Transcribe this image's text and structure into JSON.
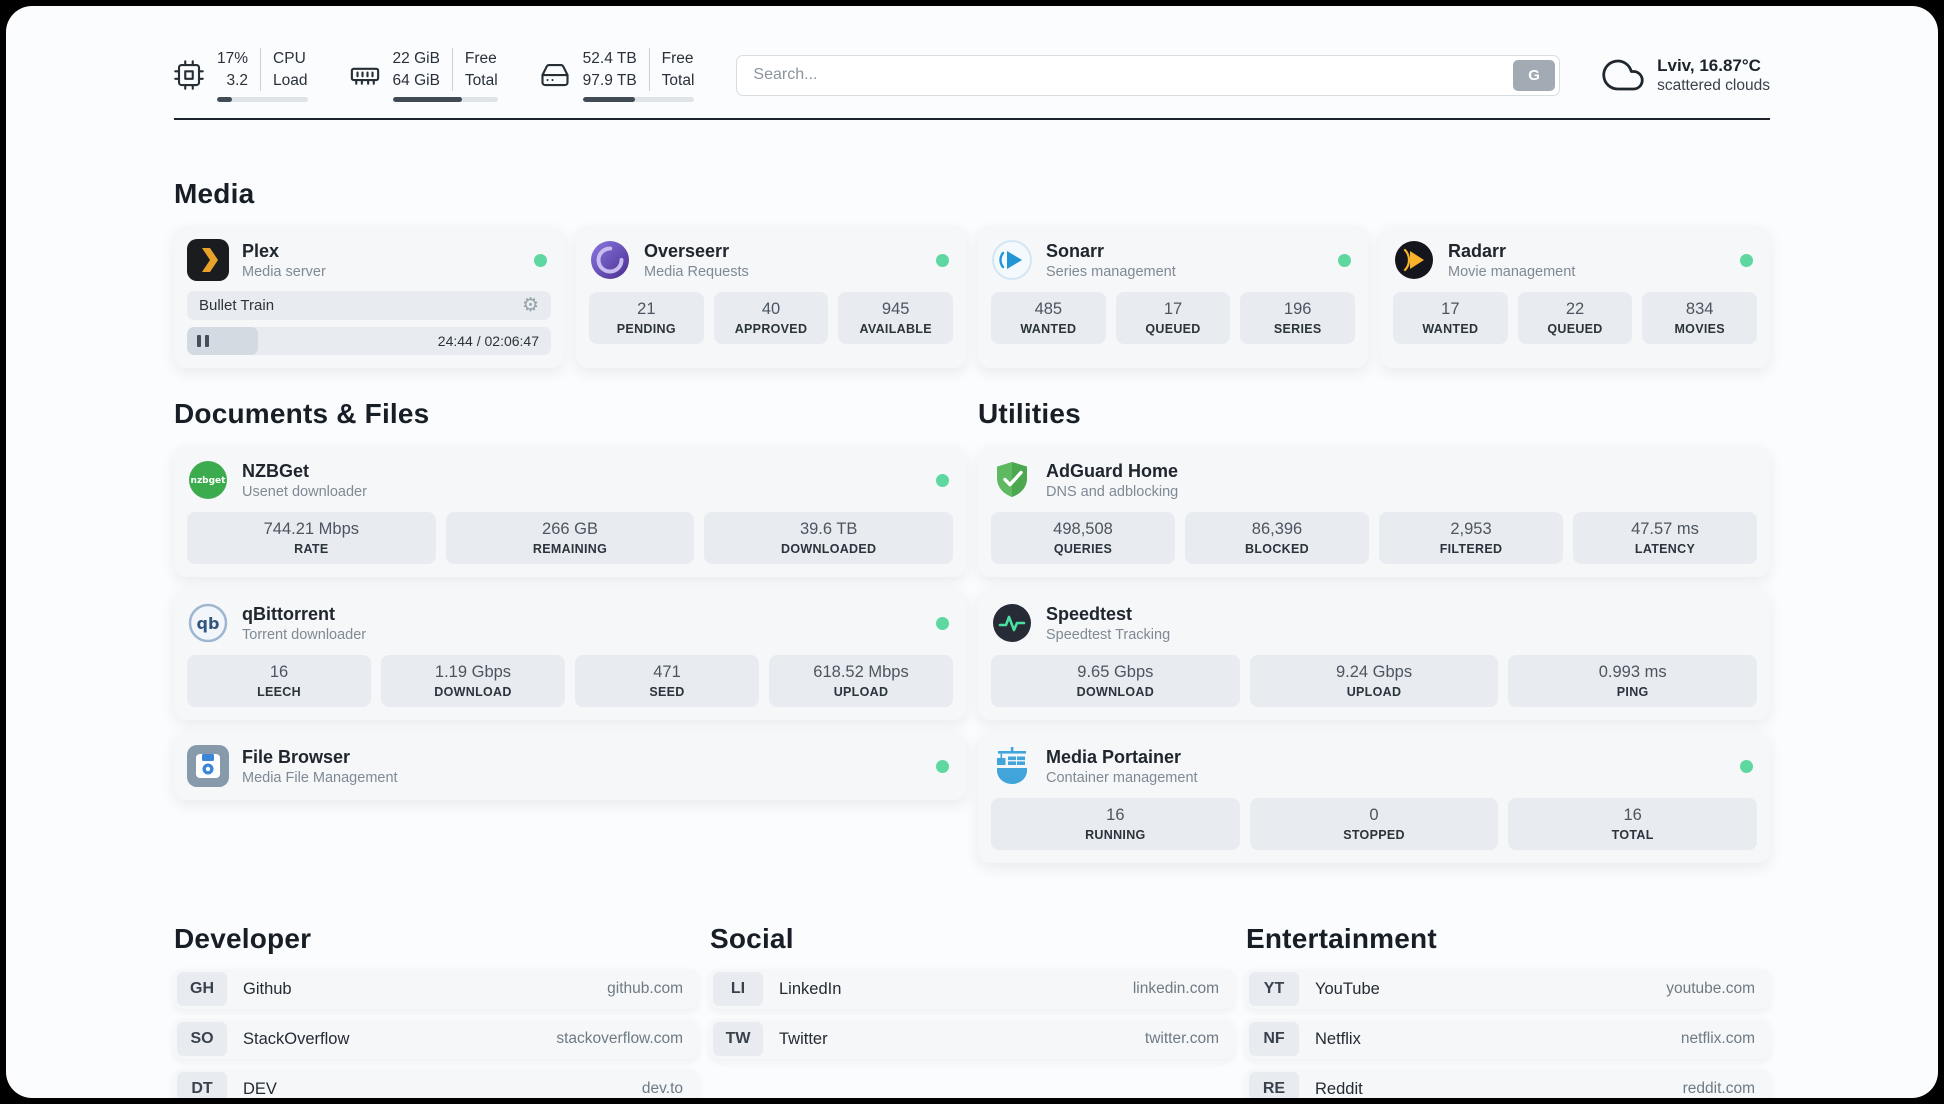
{
  "topbar": {
    "resources": [
      {
        "value1": "17%",
        "label1": "CPU",
        "value2": "3.2",
        "label2": "Load",
        "progress": 17
      },
      {
        "value1": "22 GiB",
        "label1": "Free",
        "value2": "64 GiB",
        "label2": "Total",
        "progress": 66
      },
      {
        "value1": "52.4 TB",
        "label1": "Free",
        "value2": "97.9 TB",
        "label2": "Total",
        "progress": 47
      }
    ],
    "search": {
      "placeholder": "Search...",
      "button_label": "G"
    },
    "weather": {
      "location": "Lviv, 16.87°C",
      "condition": "scattered clouds"
    }
  },
  "sections": {
    "media": {
      "title": "Media",
      "plex": {
        "name": "Plex",
        "subtitle": "Media server",
        "now_playing": "Bullet Train",
        "time": "24:44 / 02:06:47",
        "progress": 19.5
      },
      "overseerr": {
        "name": "Overseerr",
        "subtitle": "Media Requests",
        "stats": [
          {
            "value": "21",
            "label": "PENDING"
          },
          {
            "value": "40",
            "label": "APPROVED"
          },
          {
            "value": "945",
            "label": "AVAILABLE"
          }
        ]
      },
      "sonarr": {
        "name": "Sonarr",
        "subtitle": "Series management",
        "stats": [
          {
            "value": "485",
            "label": "WANTED"
          },
          {
            "value": "17",
            "label": "QUEUED"
          },
          {
            "value": "196",
            "label": "SERIES"
          }
        ]
      },
      "radarr": {
        "name": "Radarr",
        "subtitle": "Movie management",
        "stats": [
          {
            "value": "17",
            "label": "WANTED"
          },
          {
            "value": "22",
            "label": "QUEUED"
          },
          {
            "value": "834",
            "label": "MOVIES"
          }
        ]
      }
    },
    "documents": {
      "title": "Documents & Files",
      "nzbget": {
        "name": "NZBGet",
        "subtitle": "Usenet downloader",
        "stats": [
          {
            "value": "744.21 Mbps",
            "label": "RATE"
          },
          {
            "value": "266 GB",
            "label": "REMAINING"
          },
          {
            "value": "39.6 TB",
            "label": "DOWNLOADED"
          }
        ]
      },
      "qbittorrent": {
        "name": "qBittorrent",
        "subtitle": "Torrent downloader",
        "stats": [
          {
            "value": "16",
            "label": "LEECH"
          },
          {
            "value": "1.19 Gbps",
            "label": "DOWNLOAD"
          },
          {
            "value": "471",
            "label": "SEED"
          },
          {
            "value": "618.52 Mbps",
            "label": "UPLOAD"
          }
        ]
      },
      "filebrowser": {
        "name": "File Browser",
        "subtitle": "Media File Management"
      }
    },
    "utilities": {
      "title": "Utilities",
      "adguard": {
        "name": "AdGuard Home",
        "subtitle": "DNS and adblocking",
        "stats": [
          {
            "value": "498,508",
            "label": "QUERIES"
          },
          {
            "value": "86,396",
            "label": "BLOCKED"
          },
          {
            "value": "2,953",
            "label": "FILTERED"
          },
          {
            "value": "47.57 ms",
            "label": "LATENCY"
          }
        ]
      },
      "speedtest": {
        "name": "Speedtest",
        "subtitle": "Speedtest Tracking",
        "stats": [
          {
            "value": "9.65 Gbps",
            "label": "DOWNLOAD"
          },
          {
            "value": "9.24 Gbps",
            "label": "UPLOAD"
          },
          {
            "value": "0.993 ms",
            "label": "PING"
          }
        ]
      },
      "portainer": {
        "name": "Media Portainer",
        "subtitle": "Container management",
        "stats": [
          {
            "value": "16",
            "label": "RUNNING"
          },
          {
            "value": "0",
            "label": "STOPPED"
          },
          {
            "value": "16",
            "label": "TOTAL"
          }
        ]
      }
    },
    "links": {
      "developer": {
        "title": "Developer",
        "items": [
          {
            "abbr": "GH",
            "name": "Github",
            "url": "github.com"
          },
          {
            "abbr": "SO",
            "name": "StackOverflow",
            "url": "stackoverflow.com"
          },
          {
            "abbr": "DT",
            "name": "DEV",
            "url": "dev.to"
          }
        ]
      },
      "social": {
        "title": "Social",
        "items": [
          {
            "abbr": "LI",
            "name": "LinkedIn",
            "url": "linkedin.com"
          },
          {
            "abbr": "TW",
            "name": "Twitter",
            "url": "twitter.com"
          }
        ]
      },
      "entertainment": {
        "title": "Entertainment",
        "items": [
          {
            "abbr": "YT",
            "name": "YouTube",
            "url": "youtube.com"
          },
          {
            "abbr": "NF",
            "name": "Netflix",
            "url": "netflix.com"
          },
          {
            "abbr": "RE",
            "name": "Reddit",
            "url": "reddit.com"
          }
        ]
      }
    }
  }
}
